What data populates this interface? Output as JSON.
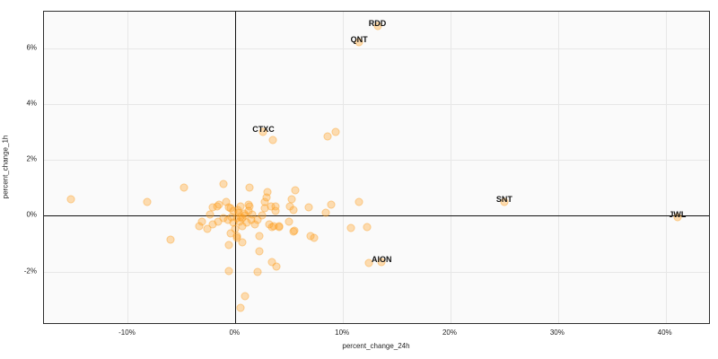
{
  "figure": {
    "background": "#ffffff",
    "plot_background": "#fafafa",
    "grid_color": "#e7e7e7",
    "zero_line_color": "#111111",
    "point_fill": "rgba(255,163,42,0.36)",
    "point_edge": "rgba(250,152,25,0.30)",
    "annotation_color": "#131313",
    "tick_color": "#1f1f1f"
  },
  "chart_data": {
    "type": "scatter",
    "title": "",
    "xlabel": "percent_change_24h",
    "ylabel": "percent_change_1h",
    "xlim": [
      -17.8,
      44.2
    ],
    "ylim": [
      -3.9,
      7.3
    ],
    "x_ticks": [
      -10,
      0,
      10,
      20,
      30,
      40
    ],
    "x_tick_labels": [
      "-10%",
      "0%",
      "10%",
      "20%",
      "30%",
      "40%"
    ],
    "y_ticks": [
      -2,
      0,
      2,
      4,
      6
    ],
    "y_tick_labels": [
      "-2%",
      "0%",
      "2%",
      "4%",
      "6%"
    ],
    "grid": true,
    "zero_lines": true,
    "legend": false,
    "labeled_points": [
      {
        "label": "RDD",
        "x": 13.2,
        "y": 6.8
      },
      {
        "label": "QNT",
        "x": 11.5,
        "y": 6.2
      },
      {
        "label": "CTXC",
        "x": 2.6,
        "y": 3.0
      },
      {
        "label": "SNT",
        "x": 25.0,
        "y": 0.5
      },
      {
        "label": "JWL",
        "x": 41.1,
        "y": -0.05
      },
      {
        "label": "AION",
        "x": 13.6,
        "y": -1.65
      }
    ],
    "points": [
      [
        -15.3,
        0.6
      ],
      [
        -8.2,
        0.5
      ],
      [
        -6.0,
        -0.85
      ],
      [
        -4.8,
        1.0
      ],
      [
        -1.1,
        1.15
      ],
      [
        1.35,
        1.0
      ],
      [
        3.0,
        0.85
      ],
      [
        5.6,
        0.9
      ],
      [
        3.5,
        2.7
      ],
      [
        8.6,
        2.85
      ],
      [
        9.3,
        3.0
      ],
      [
        -2.1,
        0.3
      ],
      [
        -1.5,
        0.4
      ],
      [
        -0.9,
        0.5
      ],
      [
        -0.45,
        0.28
      ],
      [
        -2.4,
        0.05
      ],
      [
        -3.1,
        -0.2
      ],
      [
        -3.4,
        -0.36
      ],
      [
        -2.6,
        -0.46
      ],
      [
        -2.1,
        -0.3
      ],
      [
        -1.6,
        -0.2
      ],
      [
        -1.15,
        -0.09
      ],
      [
        -0.73,
        -0.14
      ],
      [
        -0.32,
        -0.04
      ],
      [
        0.1,
        -0.09
      ],
      [
        0.37,
        -0.2
      ],
      [
        0.65,
        -0.09
      ],
      [
        0.93,
        0.02
      ],
      [
        1.2,
        0.18
      ],
      [
        1.35,
        0.34
      ],
      [
        1.48,
        -0.14
      ],
      [
        1.07,
        -0.25
      ],
      [
        0.65,
        -0.36
      ],
      [
        -0.04,
        -0.46
      ],
      [
        -0.46,
        -0.63
      ],
      [
        0.1,
        -0.79
      ],
      [
        0.65,
        -0.95
      ],
      [
        -0.18,
        0.18
      ],
      [
        0.3,
        0.1
      ],
      [
        0.5,
        -0.05
      ],
      [
        0.8,
        0.08
      ],
      [
        0.2,
        0.22
      ],
      [
        -0.2,
        -0.25
      ],
      [
        1.6,
        0.05
      ],
      [
        1.8,
        -0.3
      ],
      [
        0.45,
        0.35
      ],
      [
        -1.7,
        0.35
      ],
      [
        -0.6,
        0.3
      ],
      [
        1.2,
        0.4
      ],
      [
        2.7,
        0.5
      ],
      [
        3.7,
        0.35
      ],
      [
        2.9,
        0.66
      ],
      [
        3.3,
        0.34
      ],
      [
        2.7,
        0.28
      ],
      [
        3.7,
        0.18
      ],
      [
        5.1,
        0.34
      ],
      [
        5.2,
        0.6
      ],
      [
        5.4,
        0.2
      ],
      [
        2.45,
        0.02
      ],
      [
        2.04,
        -0.14
      ],
      [
        3.15,
        -0.3
      ],
      [
        3.57,
        -0.36
      ],
      [
        4.1,
        -0.36
      ],
      [
        4.96,
        -0.2
      ],
      [
        5.5,
        -0.52
      ],
      [
        6.8,
        0.32
      ],
      [
        8.9,
        0.4
      ],
      [
        8.4,
        0.1
      ],
      [
        11.5,
        0.5
      ],
      [
        10.7,
        -0.45
      ],
      [
        12.2,
        -0.4
      ],
      [
        12.4,
        -1.7
      ],
      [
        -0.6,
        -1.05
      ],
      [
        0.1,
        -0.73
      ],
      [
        2.2,
        -0.73
      ],
      [
        2.2,
        -1.27
      ],
      [
        3.4,
        -0.41
      ],
      [
        4.1,
        -0.41
      ],
      [
        5.4,
        -0.57
      ],
      [
        7.0,
        -0.72
      ],
      [
        7.3,
        -0.8
      ],
      [
        3.4,
        -1.64
      ],
      [
        3.85,
        -1.8
      ],
      [
        2.05,
        -2.0
      ],
      [
        -0.6,
        -1.96
      ],
      [
        0.93,
        -2.87
      ],
      [
        0.5,
        -3.3
      ]
    ]
  }
}
